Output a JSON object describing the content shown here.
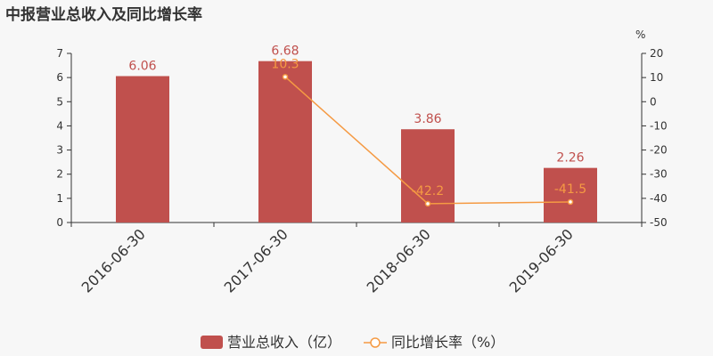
{
  "chart_data": {
    "type": "bar+line",
    "title": "中报营业总收入及同比增长率",
    "categories": [
      "2016-06-30",
      "2017-06-30",
      "2018-06-30",
      "2019-06-30"
    ],
    "left_axis": {
      "ylim": [
        0,
        7
      ],
      "ticks": [
        "0",
        "1",
        "2",
        "3",
        "4",
        "5",
        "6",
        "7"
      ]
    },
    "right_axis": {
      "unit": "%",
      "ylim": [
        -50,
        20
      ],
      "ticks": [
        "-50",
        "-40",
        "-30",
        "-20",
        "-10",
        "0",
        "10",
        "20"
      ]
    },
    "series": [
      {
        "name": "营业总收入（亿）",
        "type": "bar",
        "axis": "left",
        "values": [
          6.06,
          6.68,
          3.86,
          2.26
        ],
        "labels": [
          "6.06",
          "6.68",
          "3.86",
          "2.26"
        ]
      },
      {
        "name": "同比增长率（%）",
        "type": "line",
        "axis": "right",
        "values": [
          null,
          10.3,
          -42.2,
          -41.5
        ],
        "labels": [
          "",
          "10.3",
          "-42.2",
          "-41.5"
        ]
      }
    ],
    "legend_position": "bottom-center",
    "grid": false,
    "colors": {
      "bar": "#c0504d",
      "bar_label": "#c0504d",
      "line": "#f59a43",
      "line_label": "#f59a43",
      "axis": "#333333"
    }
  }
}
